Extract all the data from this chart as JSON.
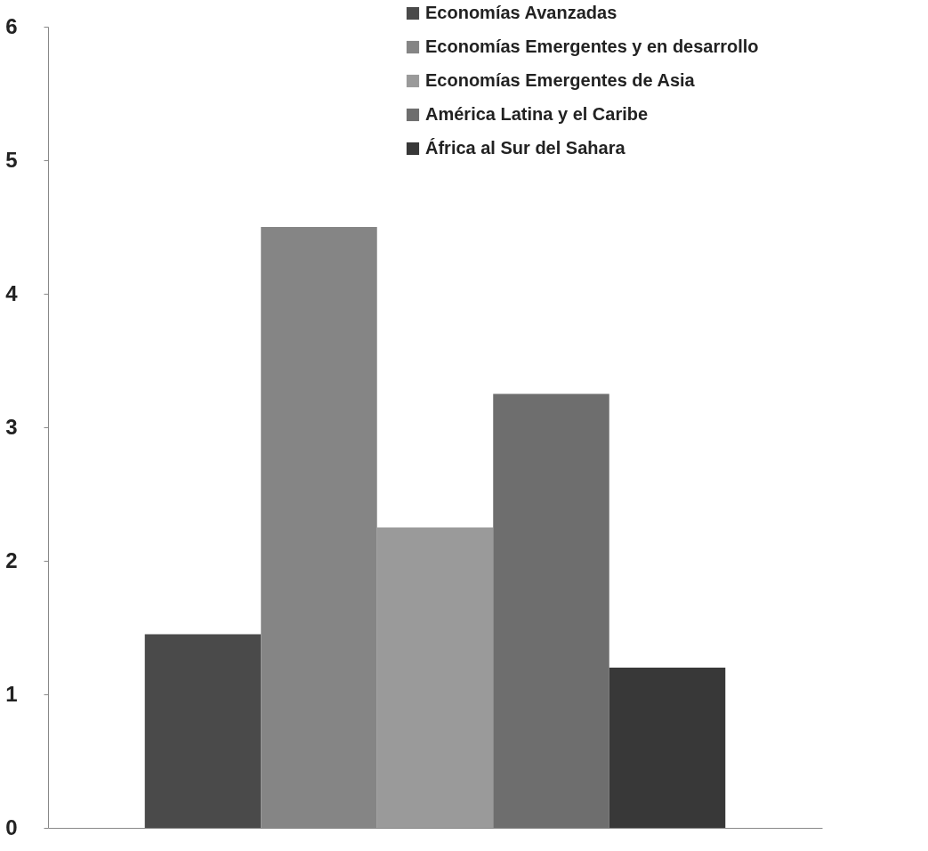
{
  "chart_data": {
    "type": "bar",
    "categories": [
      null
    ],
    "series": [
      {
        "name": "Economías Avanzadas",
        "color": "#4a4a4a",
        "values": [
          1.45
        ]
      },
      {
        "name": "Economías Emergentes y en desarrollo",
        "color": "#858585",
        "values": [
          4.5
        ]
      },
      {
        "name": "Economías Emergentes de Asia",
        "color": "#9a9a9a",
        "values": [
          2.25
        ]
      },
      {
        "name": "América Latina y el Caribe",
        "color": "#6e6e6e",
        "values": [
          3.25
        ]
      },
      {
        "name": "África al Sur del Sahara",
        "color": "#383838",
        "values": [
          1.2
        ]
      }
    ],
    "ylim": [
      0,
      6
    ],
    "yticks": [
      0,
      1,
      2,
      3,
      4,
      5,
      6
    ],
    "grid": false,
    "legend": "top right",
    "tick_labels": "y"
  }
}
